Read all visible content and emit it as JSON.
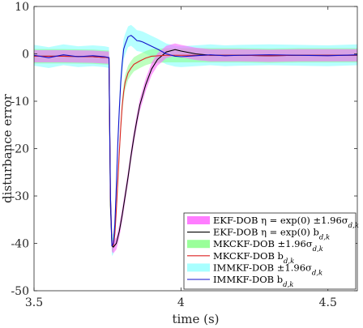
{
  "chart_data": {
    "type": "line",
    "xlabel": "time (s)",
    "ylabel": "disturbance error",
    "xlim": [
      3.5,
      4.6
    ],
    "ylim": [
      -50,
      10
    ],
    "xticks": [
      3.5,
      4,
      4.5
    ],
    "xtick_labels": [
      "3.5",
      "4",
      "4.5"
    ],
    "yticks": [
      10,
      0,
      -10,
      -20,
      -30,
      -40,
      -50
    ],
    "ytick_labels": [
      "10",
      "0",
      "-10",
      "-20",
      "-30",
      "-40",
      "-50"
    ],
    "grid": false,
    "legend_position": "bottom-right",
    "series": [
      {
        "name": "EKF-DOB η = exp(0) b_{d,k}",
        "legend_text": "EKF-DOB η = exp(0) b",
        "band_legend_text": "EKF-DOB η = exp(0) ±1.96σ",
        "color": "#000000",
        "band_color": "#ff66ff",
        "x": [
          3.5,
          3.6,
          3.7,
          3.755,
          3.76,
          3.765,
          3.77,
          3.78,
          3.79,
          3.8,
          3.81,
          3.82,
          3.83,
          3.84,
          3.85,
          3.86,
          3.88,
          3.9,
          3.92,
          3.95,
          3.98,
          4.0,
          4.05,
          4.1,
          4.2,
          4.3,
          4.4,
          4.5,
          4.6
        ],
        "y": [
          -0.5,
          -0.5,
          -0.6,
          -0.8,
          -32.0,
          -40.5,
          -40.8,
          -40.0,
          -37.5,
          -34.0,
          -30.0,
          -26.0,
          -21.5,
          -17.5,
          -14.0,
          -10.8,
          -6.5,
          -3.2,
          -1.2,
          0.4,
          0.9,
          0.6,
          0.0,
          -0.3,
          -0.3,
          -0.4,
          -0.3,
          -0.3,
          -0.3
        ],
        "band_halfwidth": 1.3
      },
      {
        "name": "MKCKF-DOB b_{d,k}",
        "legend_text": "MKCKF-DOB b",
        "band_legend_text": "MKCKF-DOB ±1.96σ",
        "color": "#dd2222",
        "band_color": "#88ff88",
        "x": [
          3.5,
          3.6,
          3.7,
          3.755,
          3.76,
          3.765,
          3.77,
          3.775,
          3.78,
          3.785,
          3.79,
          3.795,
          3.8,
          3.805,
          3.81,
          3.82,
          3.83,
          3.84,
          3.86,
          3.88,
          3.9,
          3.95,
          4.0,
          4.1,
          4.2,
          4.3,
          4.4,
          4.5,
          4.6
        ],
        "y": [
          -0.5,
          -0.5,
          -0.6,
          -0.8,
          -30.0,
          -40.0,
          -40.5,
          -38.0,
          -33.0,
          -27.0,
          -21.0,
          -15.5,
          -11.0,
          -8.0,
          -6.0,
          -4.0,
          -3.0,
          -2.2,
          -1.5,
          -0.9,
          -0.5,
          -0.3,
          -0.3,
          -0.3,
          -0.3,
          -0.4,
          -0.3,
          -0.3,
          -0.3
        ],
        "band_halfwidth": 1.5
      },
      {
        "name": "IMMKF-DOB b_{d,k}",
        "legend_text": "IMMKF-DOB b",
        "band_legend_text": "IMMKF-DOB ±1.96σ",
        "color": "#1111cc",
        "band_color": "#99ffff",
        "x": [
          3.5,
          3.55,
          3.6,
          3.65,
          3.7,
          3.74,
          3.755,
          3.76,
          3.765,
          3.77,
          3.775,
          3.78,
          3.785,
          3.79,
          3.795,
          3.8,
          3.805,
          3.81,
          3.82,
          3.83,
          3.84,
          3.85,
          3.86,
          3.87,
          3.88,
          3.9,
          3.92,
          3.95,
          3.98,
          4.0,
          4.05,
          4.1,
          4.15,
          4.2,
          4.3,
          4.4,
          4.5,
          4.6
        ],
        "y": [
          -0.3,
          -0.8,
          -0.2,
          -0.6,
          -0.4,
          -0.6,
          -0.8,
          -30.0,
          -40.5,
          -40.0,
          -36.0,
          -28.0,
          -19.0,
          -12.0,
          -6.0,
          -2.0,
          1.0,
          2.0,
          3.6,
          3.9,
          3.4,
          2.8,
          2.7,
          2.5,
          2.2,
          1.6,
          1.0,
          0.0,
          -0.5,
          -0.6,
          -0.4,
          -0.2,
          -0.4,
          -0.3,
          -0.2,
          -0.3,
          -0.4,
          -0.2
        ],
        "band_halfwidth": 2.2
      }
    ]
  }
}
